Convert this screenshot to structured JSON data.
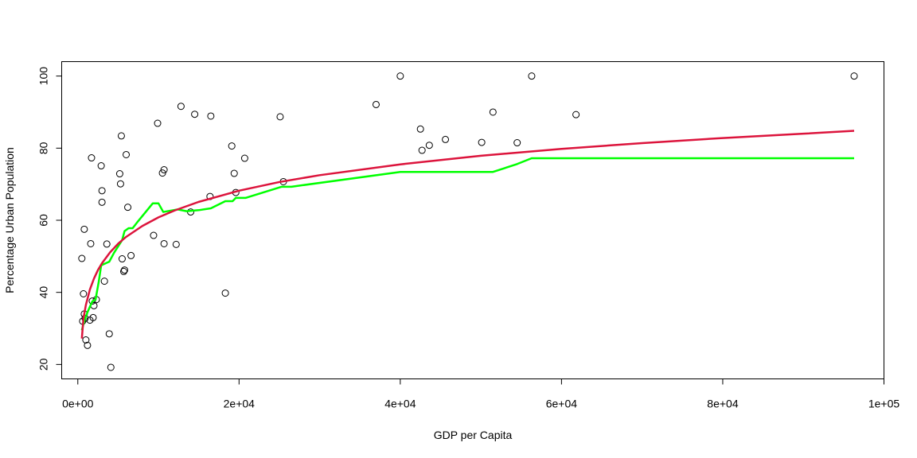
{
  "chart_data": {
    "type": "scatter",
    "title": "",
    "xlabel": "GDP per Capita",
    "ylabel": "Percentage Urban Population",
    "xlim": [
      -2000,
      100000
    ],
    "ylim": [
      16,
      104
    ],
    "x_ticks": [
      0,
      20000,
      40000,
      60000,
      80000,
      100000
    ],
    "x_tick_labels": [
      "0e+00",
      "2e+04",
      "4e+04",
      "6e+04",
      "8e+04",
      "1e+05"
    ],
    "y_ticks": [
      20,
      40,
      60,
      80,
      100
    ],
    "y_tick_labels": [
      "20",
      "40",
      "60",
      "80",
      "100"
    ],
    "grid": false,
    "legend": "none",
    "colors": {
      "points": "#000000",
      "fit_log": "#dc143c",
      "fit_smooth": "#00ff00",
      "axes": "#000000"
    },
    "points": [
      [
        500,
        49.4
      ],
      [
        600,
        32.0
      ],
      [
        700,
        39.6
      ],
      [
        800,
        57.5
      ],
      [
        800,
        34.0
      ],
      [
        900,
        32.8
      ],
      [
        1000,
        26.8
      ],
      [
        1200,
        25.3
      ],
      [
        1500,
        32.3
      ],
      [
        1600,
        53.5
      ],
      [
        1700,
        77.3
      ],
      [
        1800,
        37.6
      ],
      [
        1900,
        33.0
      ],
      [
        2000,
        36.3
      ],
      [
        2300,
        38.0
      ],
      [
        2900,
        75.1
      ],
      [
        3000,
        68.2
      ],
      [
        3000,
        65.0
      ],
      [
        3300,
        43.1
      ],
      [
        3600,
        53.4
      ],
      [
        3900,
        28.5
      ],
      [
        4100,
        19.2
      ],
      [
        5200,
        72.9
      ],
      [
        5300,
        70.1
      ],
      [
        5400,
        83.4
      ],
      [
        5500,
        49.3
      ],
      [
        5700,
        45.8
      ],
      [
        5800,
        46.2
      ],
      [
        6000,
        78.2
      ],
      [
        6200,
        63.6
      ],
      [
        6600,
        50.2
      ],
      [
        9400,
        55.8
      ],
      [
        9900,
        86.9
      ],
      [
        10500,
        73.1
      ],
      [
        10700,
        74.0
      ],
      [
        10700,
        53.5
      ],
      [
        12200,
        53.3
      ],
      [
        12800,
        91.6
      ],
      [
        14000,
        62.3
      ],
      [
        14500,
        89.4
      ],
      [
        16400,
        66.6
      ],
      [
        16500,
        88.9
      ],
      [
        18300,
        39.8
      ],
      [
        19100,
        80.6
      ],
      [
        19400,
        73.0
      ],
      [
        19600,
        67.7
      ],
      [
        20700,
        77.2
      ],
      [
        25100,
        88.7
      ],
      [
        25500,
        70.7
      ],
      [
        37000,
        92.1
      ],
      [
        40000,
        100.0
      ],
      [
        42500,
        85.3
      ],
      [
        42700,
        79.4
      ],
      [
        43600,
        80.8
      ],
      [
        45600,
        82.4
      ],
      [
        50100,
        81.6
      ],
      [
        51500,
        90.0
      ],
      [
        54500,
        81.5
      ],
      [
        56300,
        100.0
      ],
      [
        61800,
        89.3
      ],
      [
        96300,
        100.0
      ]
    ],
    "series": [
      {
        "values": [
          [
            500,
            27.2
          ],
          [
            700,
            32.8
          ],
          [
            1000,
            36.5
          ],
          [
            1500,
            40.8
          ],
          [
            2000,
            43.8
          ],
          [
            2500,
            46.2
          ],
          [
            3000,
            48.1
          ],
          [
            4000,
            51.1
          ],
          [
            5000,
            53.5
          ],
          [
            6000,
            55.4
          ],
          [
            8000,
            58.4
          ],
          [
            10000,
            60.8
          ],
          [
            12000,
            62.7
          ],
          [
            15000,
            65.1
          ],
          [
            20000,
            68.2
          ],
          [
            25000,
            70.6
          ],
          [
            30000,
            72.5
          ],
          [
            40000,
            75.5
          ],
          [
            50000,
            77.9
          ],
          [
            60000,
            79.8
          ],
          [
            70000,
            81.4
          ],
          [
            80000,
            82.8
          ],
          [
            90000,
            84.0
          ],
          [
            96300,
            84.8
          ]
        ]
      },
      {
        "values": [
          [
            500,
            29.5
          ],
          [
            800,
            32.0
          ],
          [
            1200,
            34.5
          ],
          [
            1800,
            37.5
          ],
          [
            2200,
            38.0
          ],
          [
            2600,
            43.0
          ],
          [
            2900,
            47.5
          ],
          [
            3400,
            48.0
          ],
          [
            3900,
            48.5
          ],
          [
            4500,
            51.0
          ],
          [
            5500,
            54.5
          ],
          [
            5800,
            57.0
          ],
          [
            6300,
            57.8
          ],
          [
            6800,
            57.8
          ],
          [
            7500,
            59.8
          ],
          [
            9300,
            64.7
          ],
          [
            10000,
            64.7
          ],
          [
            10600,
            62.3
          ],
          [
            12400,
            63.0
          ],
          [
            13500,
            62.5
          ],
          [
            15000,
            62.8
          ],
          [
            16500,
            63.3
          ],
          [
            18300,
            65.3
          ],
          [
            19200,
            65.3
          ],
          [
            19600,
            66.2
          ],
          [
            20800,
            66.2
          ],
          [
            25300,
            69.3
          ],
          [
            26500,
            69.3
          ],
          [
            40000,
            73.4
          ],
          [
            51500,
            73.4
          ],
          [
            54500,
            75.6
          ],
          [
            56300,
            77.2
          ],
          [
            96300,
            77.2
          ]
        ]
      }
    ]
  }
}
